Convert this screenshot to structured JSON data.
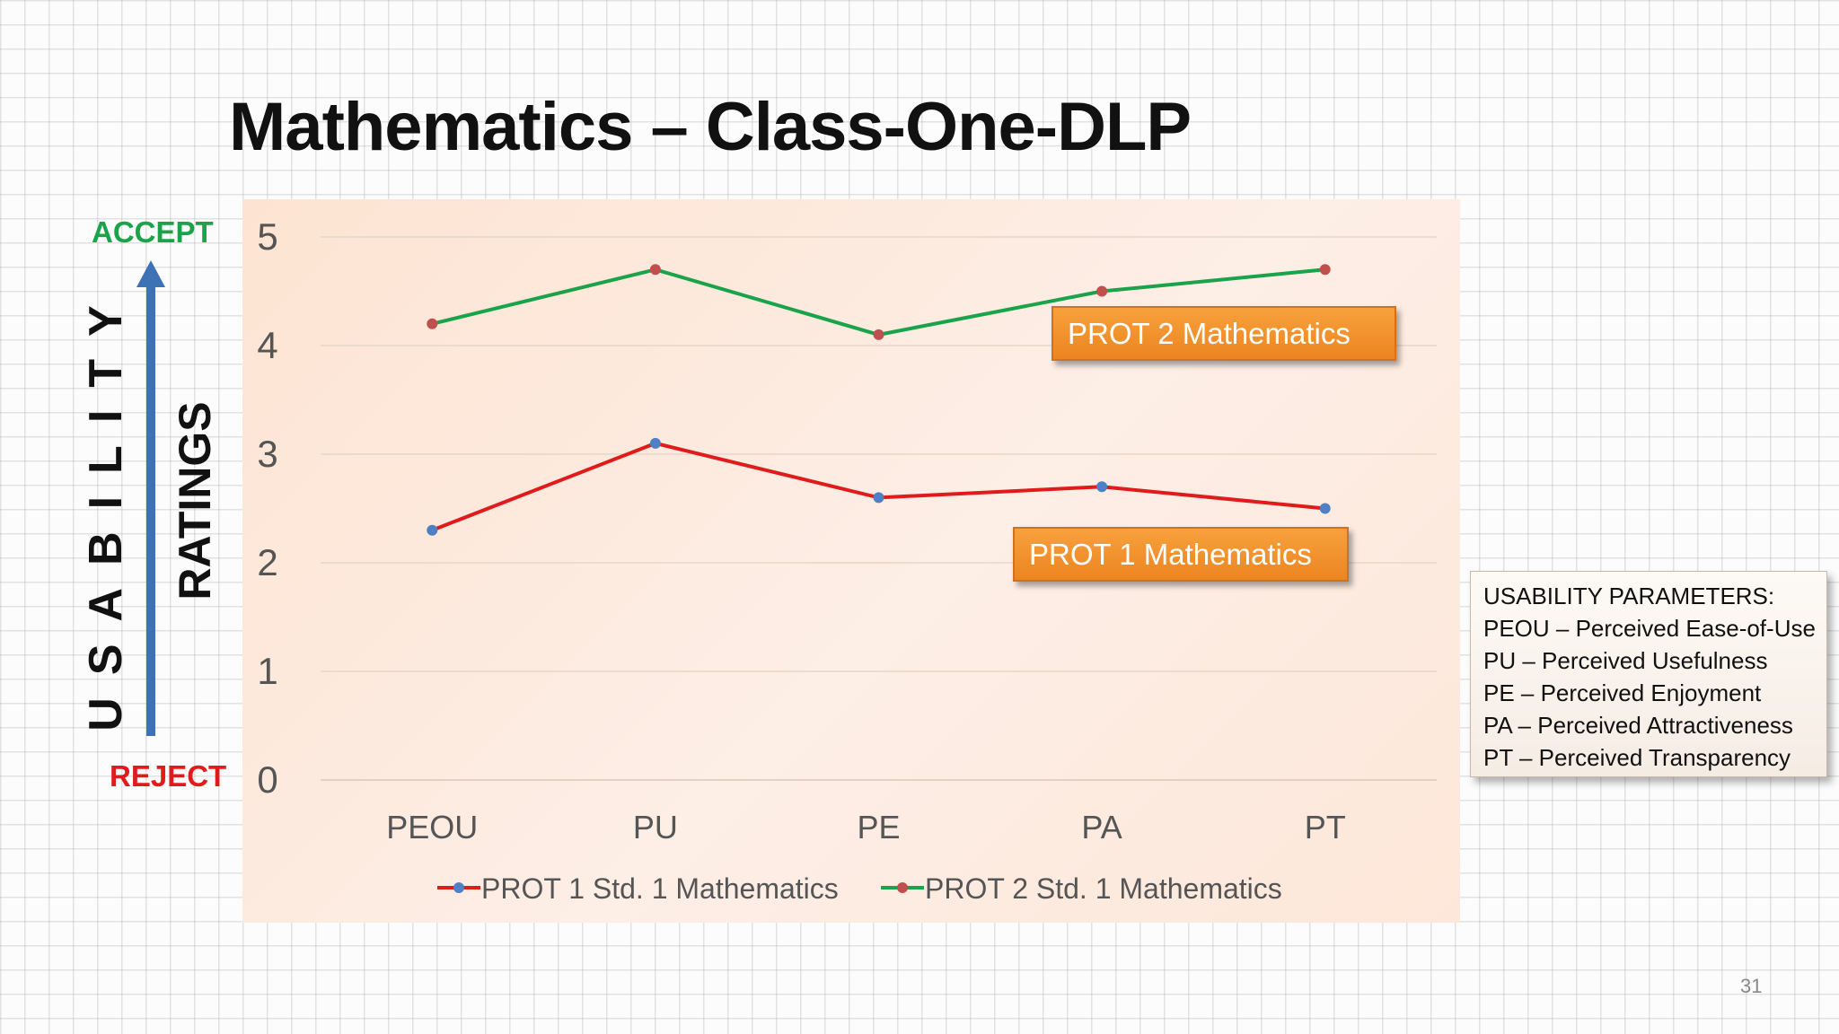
{
  "slide": {
    "title": "Mathematics – Class-One-DLP",
    "accept_label": "ACCEPT",
    "reject_label": "REJECT",
    "usability_label": "USABILITY",
    "ratings_label": "RATINGS",
    "callout_prot2": "PROT 2 Mathematics",
    "callout_prot1": "PROT 1 Mathematics",
    "parameters": {
      "heading": "USABILITY PARAMETERS:",
      "items": [
        "PEOU – Perceived Ease-of-Use",
        "PU – Perceived Usefulness",
        "PE – Perceived Enjoyment",
        "PA – Perceived Attractiveness",
        "PT – Perceived Transparency"
      ]
    },
    "page_number": "31",
    "colors": {
      "accept": "#1aa34a",
      "reject": "#e01b1b",
      "arrow": "#3d72b5",
      "callout": "#f0902c"
    }
  },
  "chart_data": {
    "type": "line",
    "categories": [
      "PEOU",
      "PU",
      "PE",
      "PA",
      "PT"
    ],
    "series": [
      {
        "name": "PROT 1 Std. 1  Mathematics",
        "values": [
          2.3,
          3.1,
          2.6,
          2.7,
          2.5
        ],
        "line_color": "#e01b1b",
        "marker_color": "#4f7fc4"
      },
      {
        "name": "PROT 2 Std. 1  Mathematics",
        "values": [
          4.2,
          4.7,
          4.1,
          4.5,
          4.7
        ],
        "line_color": "#1aa34a",
        "marker_color": "#c0504d"
      }
    ],
    "ylim": [
      0,
      5
    ],
    "yticks": [
      0,
      1,
      2,
      3,
      4,
      5
    ],
    "grid": true,
    "legend_position": "bottom"
  }
}
